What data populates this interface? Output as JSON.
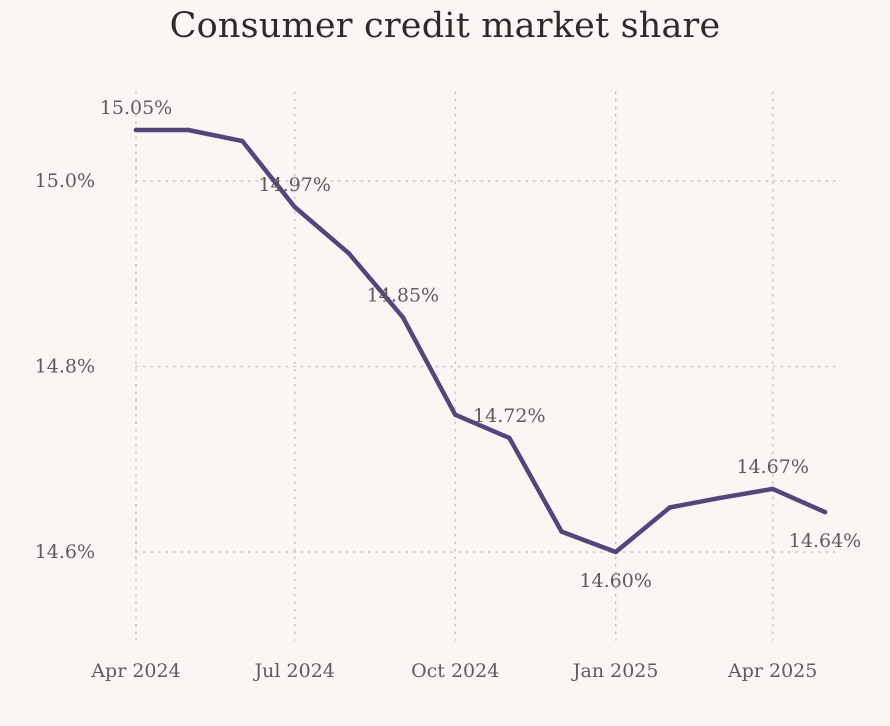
{
  "chart_data": {
    "type": "line",
    "title": "Consumer credit market share",
    "xlabel": "",
    "ylabel": "",
    "x": [
      "2024-04-01",
      "2024-05-01",
      "2024-06-01",
      "2024-07-01",
      "2024-08-01",
      "2024-09-01",
      "2024-10-01",
      "2024-11-01",
      "2024-12-01",
      "2025-01-01",
      "2025-02-01",
      "2025-03-01",
      "2025-04-01",
      "2025-05-01"
    ],
    "series": [
      {
        "values": [
          15.055,
          15.055,
          15.043,
          14.972,
          14.922,
          14.853,
          14.748,
          14.723,
          14.622,
          14.6,
          14.648,
          14.658,
          14.668,
          14.643
        ],
        "color": "#54467a"
      }
    ],
    "data_labels": [
      {
        "index": 0,
        "text": "15.05%",
        "position": "above"
      },
      {
        "index": 3,
        "text": "14.97%",
        "position": "above"
      },
      {
        "index": 5,
        "text": "14.85%",
        "position": "left"
      },
      {
        "index": 7,
        "text": "14.72%",
        "position": "above"
      },
      {
        "index": 9,
        "text": "14.60%",
        "position": "below"
      },
      {
        "index": 12,
        "text": "14.67%",
        "position": "above"
      },
      {
        "index": 13,
        "text": "14.64%",
        "position": "below"
      }
    ],
    "yticks": [
      14.6,
      14.8,
      15.0
    ],
    "ytick_labels": [
      "14.6%",
      "14.8%",
      "15.0%"
    ],
    "xticks": [
      "2024-04-01",
      "2024-07-01",
      "2024-10-01",
      "2025-01-01",
      "2025-04-01"
    ],
    "xtick_labels": [
      "Apr 2024",
      "Jul 2024",
      "Oct 2024",
      "Jan 2025",
      "Apr 2025"
    ],
    "ylim": [
      14.5,
      15.1
    ],
    "xlim": [
      "2024-04-01",
      "2025-05-01"
    ],
    "grid": true,
    "grid_style": "dotted",
    "background": "#faf6f3",
    "gridline_color": "#cfc8c6",
    "text_color": "#5c5c5c"
  }
}
